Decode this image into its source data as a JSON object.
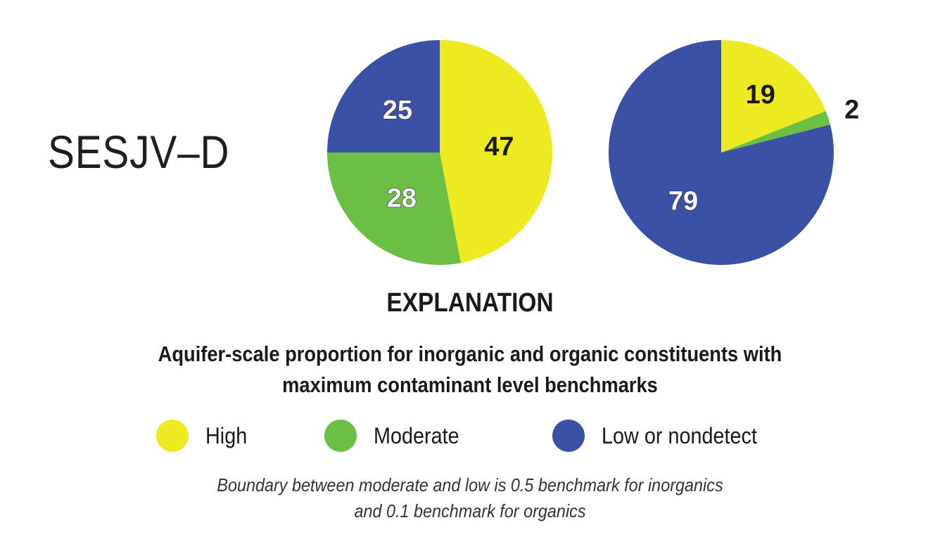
{
  "region_label": "SESJV–D",
  "chart_data": [
    {
      "type": "pie",
      "title": "",
      "slices": [
        {
          "label": "High",
          "value": 47,
          "color": "#eeea22",
          "text": "47",
          "text_color": "#1a1a1a",
          "text_position": "inside"
        },
        {
          "label": "Moderate",
          "value": 28,
          "color": "#6cbf45",
          "text": "28",
          "text_color": "#ffffff",
          "text_position": "inside"
        },
        {
          "label": "Low or nondetect",
          "value": 25,
          "color": "#3a51a6",
          "text": "25",
          "text_color": "#ffffff",
          "text_position": "inside"
        }
      ]
    },
    {
      "type": "pie",
      "title": "",
      "slices": [
        {
          "label": "High",
          "value": 19,
          "color": "#eeea22",
          "text": "19",
          "text_color": "#1a1a1a",
          "text_position": "inside"
        },
        {
          "label": "Moderate",
          "value": 2,
          "color": "#6cbf45",
          "text": "2",
          "text_color": "#1a1a1a",
          "text_position": "outside"
        },
        {
          "label": "Low or nondetect",
          "value": 79,
          "color": "#3a51a6",
          "text": "79",
          "text_color": "#ffffff",
          "text_position": "inside"
        }
      ]
    }
  ],
  "explanation": {
    "heading": "EXPLANATION",
    "subtitle_lines": [
      "Aquifer-scale proportion for inorganic and organic constituents with",
      "maximum contaminant level benchmarks"
    ]
  },
  "legend": [
    {
      "label": "High",
      "color": "#eeea22"
    },
    {
      "label": "Moderate",
      "color": "#6cbf45"
    },
    {
      "label": "Low or nondetect",
      "color": "#3a51a6"
    }
  ],
  "note_lines": [
    "Boundary between moderate and low is 0.5 benchmark for inorganics",
    "and 0.1  benchmark for organics"
  ]
}
